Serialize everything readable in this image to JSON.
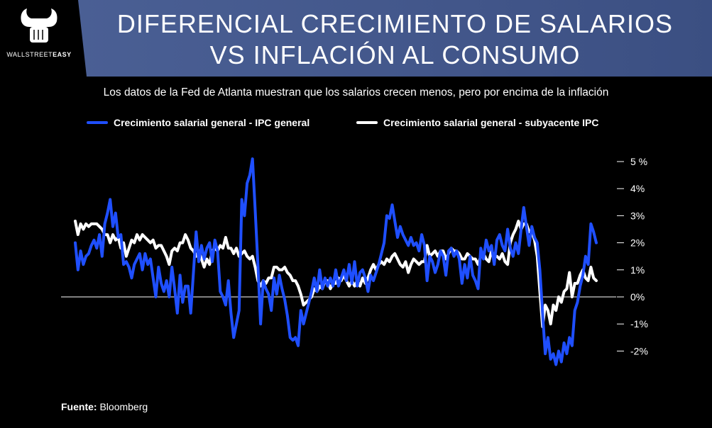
{
  "header": {
    "title_line1": "DIFERENCIAL CRECIMIENTO DE SALARIOS",
    "title_line2": "VS INFLACIÓN AL CONSUMO",
    "logo_text_a": "WALLSTREET",
    "logo_text_b": "EASY"
  },
  "subtitle": "Los datos de la Fed de Atlanta muestran que los salarios crecen menos, pero por encima de la inflación",
  "source_label": "Fuente:",
  "source_value": "Bloomberg",
  "colors": {
    "blue": "#1f4fff",
    "white": "#ffffff",
    "banner": "#4a5f94"
  },
  "chart_data": {
    "type": "line",
    "ylim": [
      -2.5,
      5.5
    ],
    "yticks": [
      {
        "value": 5,
        "label": "5 %"
      },
      {
        "value": 4,
        "label": "4%"
      },
      {
        "value": 3,
        "label": "3%"
      },
      {
        "value": 2,
        "label": "2%"
      },
      {
        "value": 1,
        "label": "1%"
      },
      {
        "value": 0,
        "label": "0%"
      },
      {
        "value": -1,
        "label": "-1%"
      },
      {
        "value": -2,
        "label": "-2%"
      }
    ],
    "legend_position": "top",
    "series": [
      {
        "name": "Crecimiento salarial general - IPC general",
        "color": "#1f4fff",
        "values": [
          2.0,
          1.0,
          1.7,
          1.2,
          1.5,
          1.6,
          1.9,
          2.1,
          1.8,
          2.3,
          1.5,
          2.7,
          3.1,
          3.6,
          2.6,
          3.1,
          2.2,
          2.3,
          1.2,
          1.3,
          1.1,
          0.7,
          1.2,
          1.4,
          1.6,
          1.0,
          1.6,
          1.2,
          1.4,
          0.7,
          0.0,
          1.1,
          0.5,
          0.2,
          0.6,
          0.0,
          1.1,
          0.3,
          -0.6,
          0.8,
          -0.2,
          0.4,
          0.4,
          -0.6,
          0.9,
          2.4,
          1.3,
          1.9,
          1.4,
          1.8,
          2.0,
          1.3,
          2.1,
          1.7,
          0.2,
          0.0,
          -0.3,
          0.6,
          -0.6,
          -1.5,
          -1.0,
          -0.5,
          3.6,
          3.0,
          4.2,
          4.5,
          5.1,
          3.2,
          1.2,
          -1.0,
          0.6,
          0.3,
          0.1,
          -0.5,
          0.7,
          0.1,
          0.8,
          0.3,
          -0.1,
          -0.7,
          -1.5,
          -1.6,
          -1.5,
          -1.8,
          -0.5,
          -1.0,
          -0.6,
          -0.2,
          0.2,
          0.7,
          0.2,
          1.0,
          0.3,
          0.7,
          0.4,
          0.7,
          0.4,
          1.0,
          0.4,
          0.7,
          1.0,
          0.6,
          1.2,
          0.5,
          1.3,
          0.4,
          0.9,
          1.0,
          0.7,
          0.2,
          0.8,
          0.6,
          0.9,
          1.2,
          1.6,
          2.0,
          3.0,
          2.9,
          3.4,
          2.8,
          2.2,
          2.6,
          2.3,
          2.1,
          1.9,
          2.2,
          1.9,
          2.0,
          1.7,
          2.3,
          1.9,
          0.6,
          1.5,
          1.3,
          0.9,
          1.2,
          1.7,
          1.5,
          0.8,
          1.7,
          1.8,
          1.5,
          1.7,
          1.4,
          0.5,
          1.2,
          0.7,
          1.5,
          0.8,
          0.6,
          0.3,
          1.8,
          1.4,
          2.1,
          1.7,
          1.9,
          1.2,
          2.1,
          2.3,
          1.9,
          1.7,
          2.5,
          1.8,
          1.5,
          2.0,
          1.6,
          2.5,
          3.3,
          2.6,
          1.9,
          2.6,
          2.2,
          2.0,
          1.0,
          -0.6,
          -2.1,
          -1.5,
          -2.3,
          -2.1,
          -2.5,
          -2.0,
          -2.4,
          -1.7,
          -2.1,
          -1.5,
          -1.8,
          -0.5,
          -0.2,
          0.4,
          0.8,
          1.5,
          1.2,
          2.7,
          2.4,
          2.0
        ]
      },
      {
        "name": "Crecimiento salarial general - subyacente IPC",
        "color": "#ffffff",
        "values": [
          2.8,
          2.3,
          2.7,
          2.5,
          2.7,
          2.6,
          2.7,
          2.7,
          2.7,
          2.6,
          2.5,
          2.3,
          2.3,
          2.0,
          2.3,
          2.1,
          2.2,
          1.8,
          2.0,
          1.5,
          1.8,
          2.1,
          2.0,
          2.3,
          2.1,
          2.3,
          2.2,
          2.1,
          2.0,
          2.1,
          1.8,
          1.9,
          1.9,
          1.7,
          1.5,
          1.2,
          1.7,
          1.8,
          1.7,
          2.0,
          2.0,
          2.3,
          2.1,
          1.8,
          1.7,
          1.5,
          1.7,
          1.4,
          1.1,
          1.4,
          1.2,
          1.7,
          1.8,
          1.7,
          1.9,
          1.8,
          2.2,
          1.8,
          1.8,
          1.6,
          1.8,
          1.5,
          1.6,
          1.7,
          1.5,
          1.4,
          1.5,
          1.1,
          0.6,
          0.4,
          0.6,
          0.5,
          0.7,
          0.7,
          1.1,
          1.1,
          1.0,
          1.0,
          1.1,
          0.9,
          0.8,
          0.6,
          0.6,
          0.4,
          0.1,
          -0.3,
          -0.2,
          -0.1,
          0.0,
          0.3,
          0.2,
          0.4,
          0.3,
          0.6,
          0.6,
          0.3,
          0.5,
          0.5,
          0.7,
          0.6,
          0.8,
          0.6,
          0.4,
          0.6,
          0.4,
          0.6,
          0.4,
          0.7,
          0.5,
          0.7,
          1.0,
          1.2,
          1.0,
          1.2,
          1.3,
          1.2,
          1.4,
          1.3,
          1.5,
          1.6,
          1.4,
          1.2,
          1.1,
          1.3,
          0.9,
          1.2,
          1.4,
          1.3,
          1.2,
          1.3,
          1.3,
          1.9,
          1.5,
          1.6,
          1.7,
          1.5,
          1.7,
          1.7,
          1.4,
          1.6,
          1.8,
          1.7,
          1.7,
          1.6,
          1.4,
          1.4,
          1.6,
          1.5,
          1.4,
          1.4,
          1.2,
          1.5,
          1.6,
          1.4,
          1.3,
          1.7,
          1.5,
          1.5,
          1.4,
          1.6,
          1.3,
          1.2,
          2.0,
          2.3,
          2.5,
          2.8,
          2.5,
          2.7,
          2.7,
          2.4,
          2.4,
          2.1,
          1.5,
          0.2,
          -1.1,
          -0.3,
          -0.5,
          -1.0,
          -0.3,
          -0.5,
          0.0,
          -0.2,
          0.2,
          0.3,
          0.9,
          0.0,
          0.5,
          0.5,
          0.8,
          1.0,
          0.7,
          0.6,
          1.1,
          0.7,
          0.6
        ]
      }
    ]
  }
}
